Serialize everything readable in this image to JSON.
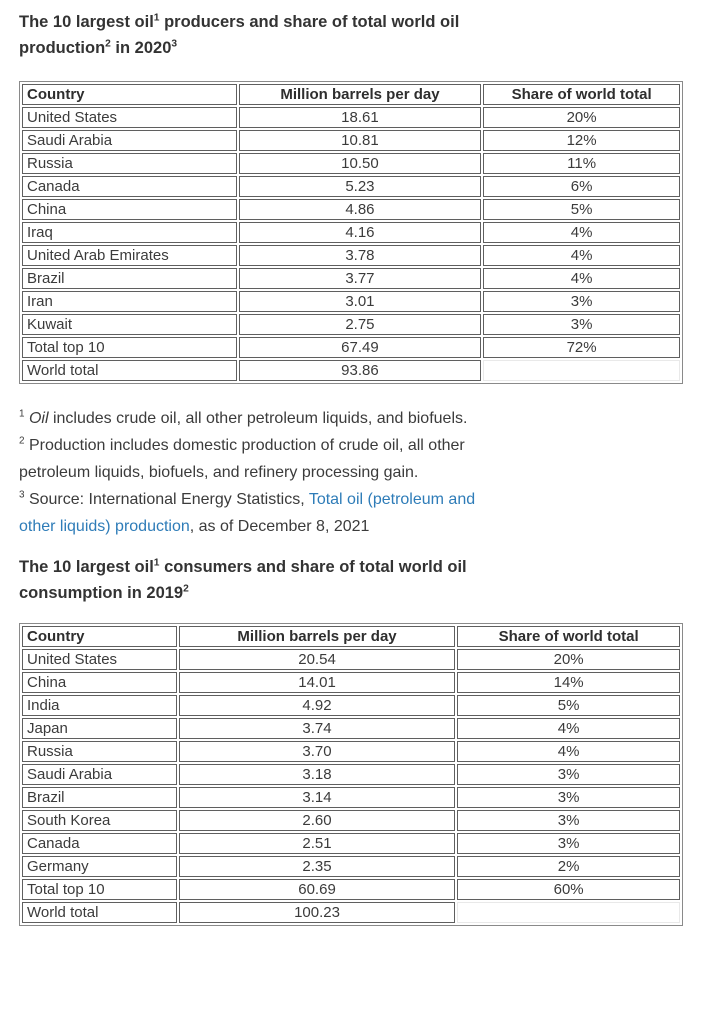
{
  "colors": {
    "text": "#3b3b3b",
    "heading": "#333333",
    "link": "#2e7cb8",
    "cell_border": "#5f5f5f",
    "table_frame": "#8a8a8a",
    "background": "#ffffff"
  },
  "producers": {
    "heading": {
      "p1": "The 10 largest oil",
      "s1": "1",
      "p2": " producers and share of total world oil production",
      "s2": "2",
      "p3": " in 2020",
      "s3": "3"
    },
    "table": {
      "headers": [
        "Country",
        "Million barrels per day",
        "Share of world total"
      ],
      "rows": [
        [
          "United States",
          "18.61",
          "20%"
        ],
        [
          "Saudi Arabia",
          "10.81",
          "12%"
        ],
        [
          "Russia",
          "10.50",
          "11%"
        ],
        [
          "Canada",
          "5.23",
          "6%"
        ],
        [
          "China",
          "4.86",
          "5%"
        ],
        [
          "Iraq",
          "4.16",
          "4%"
        ],
        [
          "United Arab Emirates",
          "3.78",
          "4%"
        ],
        [
          "Brazil",
          "3.77",
          "4%"
        ],
        [
          "Iran",
          "3.01",
          "3%"
        ],
        [
          "Kuwait",
          "2.75",
          "3%"
        ],
        [
          "Total top 10",
          "67.49",
          "72%"
        ],
        [
          "World total",
          "93.86",
          ""
        ]
      ]
    }
  },
  "footnotes": {
    "f1": {
      "sup": "1",
      "italic": "Oil",
      "text": " includes crude oil, all other petroleum liquids, and biofuels."
    },
    "f2": {
      "sup": "2",
      "text": " Production includes domestic production of crude oil, all other petroleum liquids, biofuels, and refinery processing gain."
    },
    "f3": {
      "sup": "3",
      "text_before": " Source: International Energy Statistics, ",
      "link": "Total oil (petroleum and other liquids) production",
      "text_after": ", as of December 8, 2021"
    }
  },
  "consumers": {
    "heading": {
      "p1": "The 10 largest oil",
      "s1": "1",
      "p2": " consumers and share of total world oil consumption in 2019",
      "s2": "2"
    },
    "table": {
      "headers": [
        "Country",
        "Million barrels per day",
        "Share of world total"
      ],
      "rows": [
        [
          "United States",
          "20.54",
          "20%"
        ],
        [
          "China",
          "14.01",
          "14%"
        ],
        [
          "India",
          "4.92",
          "5%"
        ],
        [
          "Japan",
          "3.74",
          "4%"
        ],
        [
          "Russia",
          "3.70",
          "4%"
        ],
        [
          "Saudi Arabia",
          "3.18",
          "3%"
        ],
        [
          "Brazil",
          "3.14",
          "3%"
        ],
        [
          "South Korea",
          "2.60",
          "3%"
        ],
        [
          "Canada",
          "2.51",
          "3%"
        ],
        [
          "Germany",
          "2.35",
          "2%"
        ],
        [
          "Total top 10",
          "60.69",
          "60%"
        ],
        [
          "World total",
          "100.23",
          ""
        ]
      ]
    }
  }
}
